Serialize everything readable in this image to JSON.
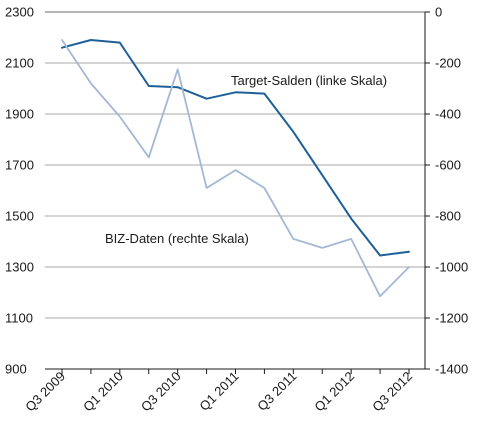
{
  "chart_data": {
    "type": "line",
    "categories": [
      "Q3 2009",
      "Q4 2009",
      "Q1 2010",
      "Q2 2010",
      "Q3 2010",
      "Q4 2010",
      "Q1 2011",
      "Q2 2011",
      "Q3 2011",
      "Q4 2011",
      "Q1 2012",
      "Q2 2012",
      "Q3 2012"
    ],
    "x_tick_labels": [
      "Q3 2009",
      "Q1 2010",
      "Q3 2010",
      "Q1 2011",
      "Q3 2011",
      "Q1 2012",
      "Q3 2012"
    ],
    "left_axis": {
      "ylim": [
        900,
        2300
      ],
      "ticks": [
        2300,
        2100,
        1900,
        1700,
        1500,
        1300,
        1100,
        900
      ]
    },
    "right_axis": {
      "ylim": [
        -1400,
        0
      ],
      "ticks": [
        0,
        -200,
        -400,
        -600,
        -800,
        -1000,
        -1200,
        -1400
      ]
    },
    "grid": "horizontal",
    "series": [
      {
        "name": "Target-Salden (linke Skala)",
        "axis": "left",
        "color": "#1f5f99",
        "values": [
          2160,
          2190,
          2180,
          2010,
          2005,
          1960,
          1985,
          1980,
          1830,
          1660,
          1490,
          1345,
          1360
        ]
      },
      {
        "name": "BIZ-Daten (rechte Skala)",
        "axis": "right",
        "color": "#a3b8d6",
        "values": [
          -110,
          -280,
          -410,
          -570,
          -225,
          -690,
          -620,
          -690,
          -890,
          -925,
          -890,
          -1115,
          -1000
        ]
      }
    ]
  }
}
